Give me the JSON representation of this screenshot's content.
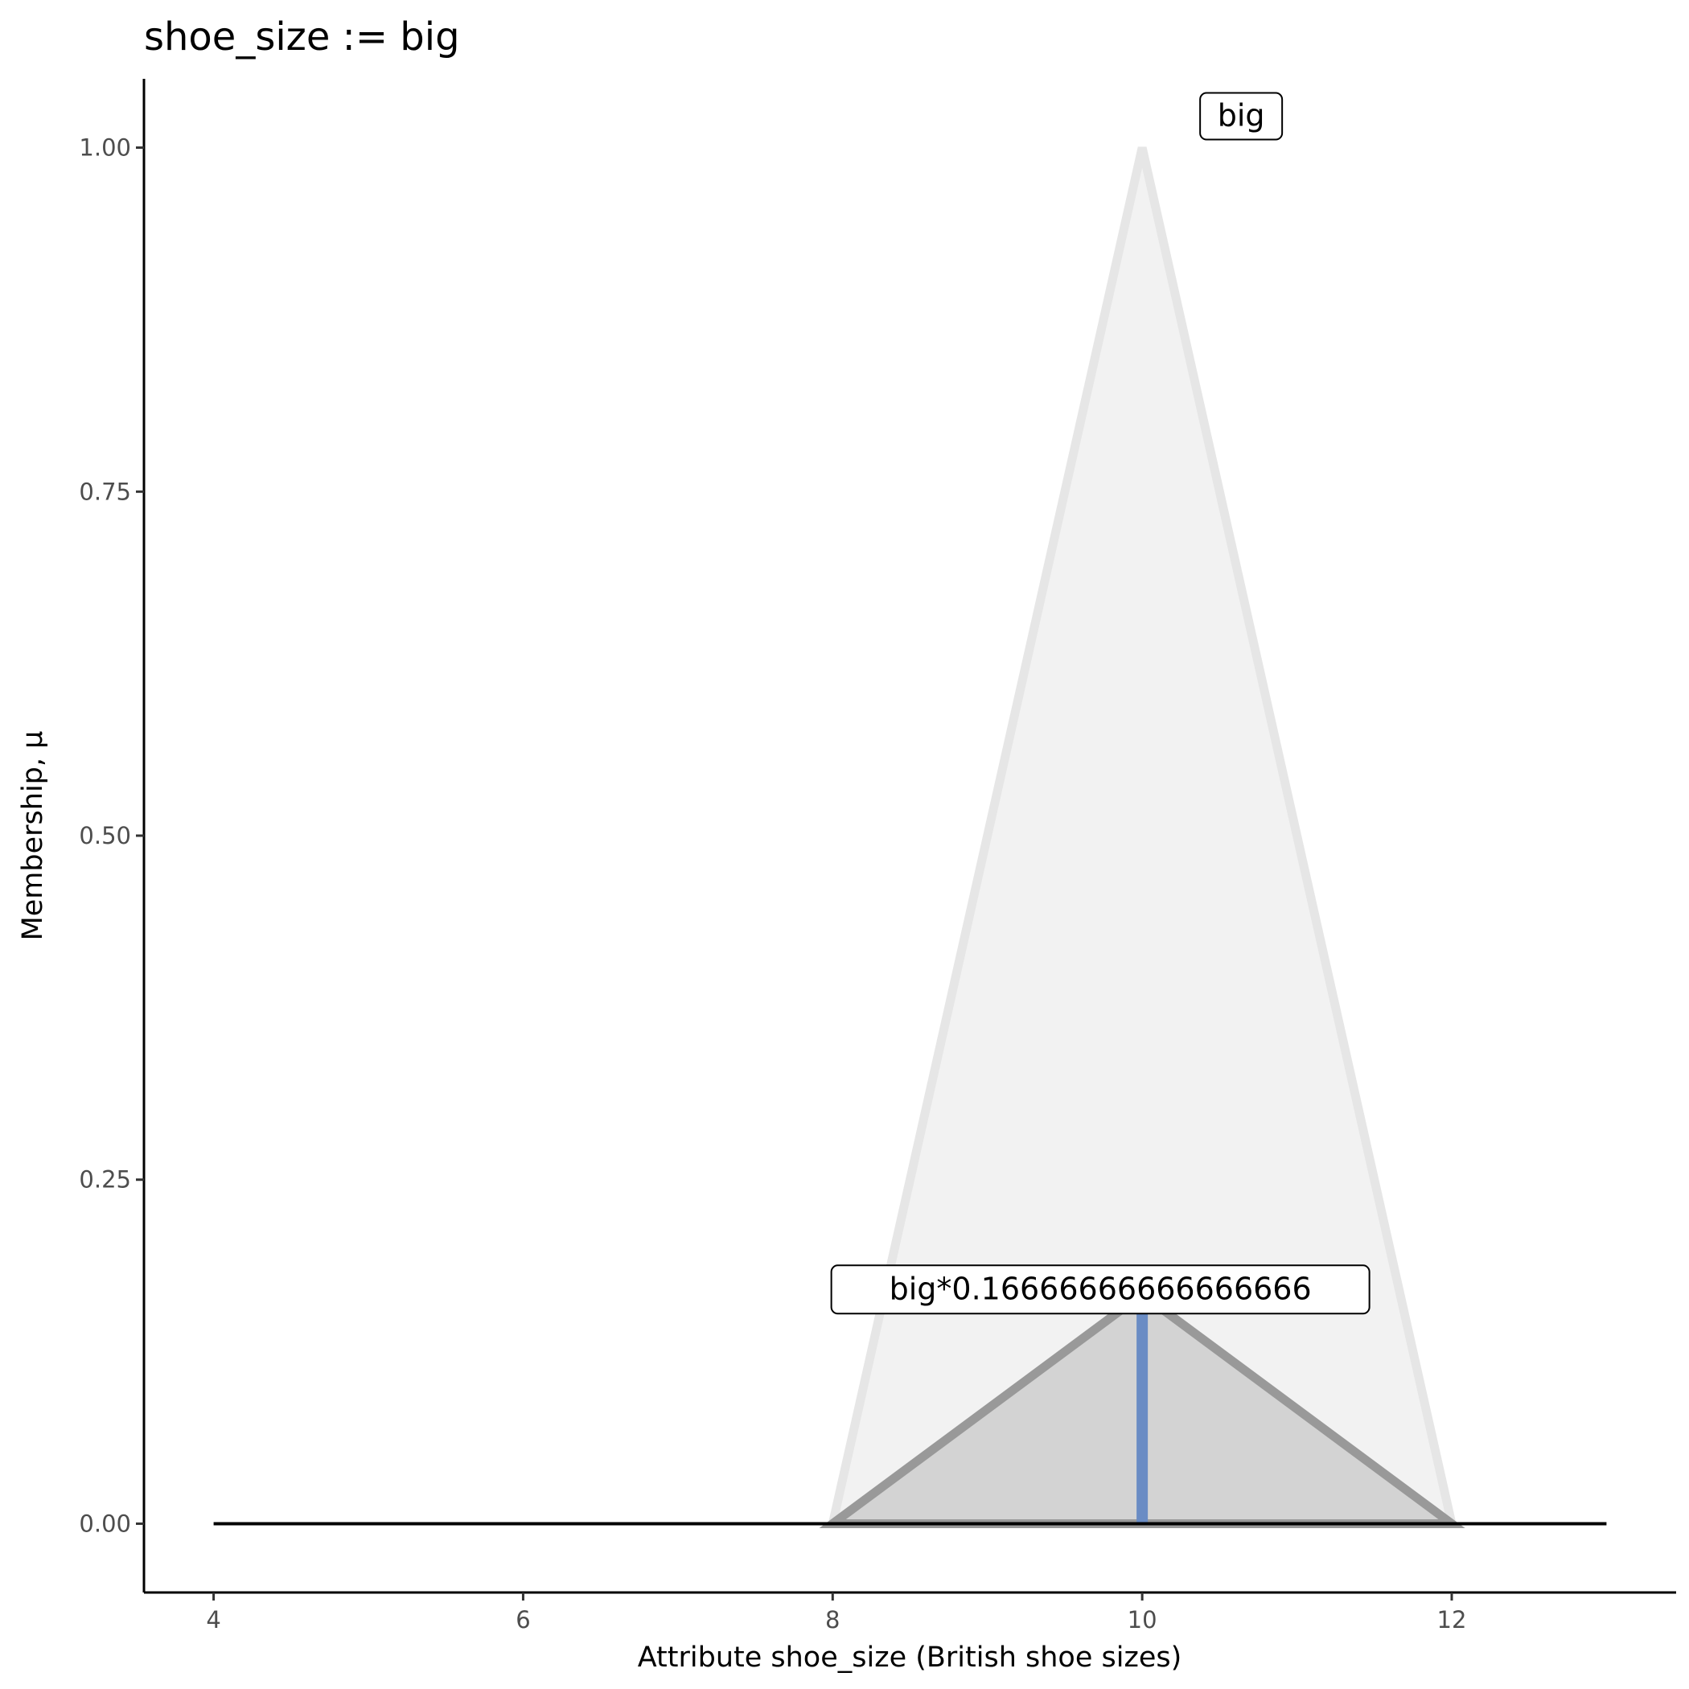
{
  "chart_data": {
    "type": "area",
    "title": "shoe_size := big",
    "xlabel": "Attribute shoe_size (British shoe sizes)",
    "ylabel": "Membership, μ",
    "xlim": [
      3.55,
      13.45
    ],
    "ylim": [
      -0.05,
      1.05
    ],
    "x_ticks": [
      4,
      6,
      8,
      10,
      12
    ],
    "x_tick_labels": [
      "4",
      "6",
      "8",
      "10",
      "12"
    ],
    "y_ticks": [
      0,
      0.25,
      0.5,
      0.75,
      1.0
    ],
    "y_tick_labels": [
      "0.00",
      "0.25",
      "0.50",
      "0.75",
      "1.00"
    ],
    "grid": false,
    "series": [
      {
        "name": "big",
        "x": [
          8,
          10,
          12
        ],
        "y": [
          0,
          1,
          0
        ],
        "fill": "#f2f2f2",
        "stroke": "#e6e6e6"
      },
      {
        "name": "big*0.16666666666666666",
        "x": [
          8,
          10,
          12
        ],
        "y": [
          0,
          0.16666666666666666,
          0
        ],
        "fill": "#d3d3d3",
        "stroke": "#999999"
      }
    ],
    "baseline": {
      "x": [
        4,
        13
      ],
      "y": 0,
      "color": "#000000"
    },
    "value_marker": {
      "x": 10,
      "y": [
        0,
        0.16
      ],
      "color": "#6a8cc4"
    },
    "annotations": [
      {
        "text": "big",
        "x": 10,
        "y": 1.0
      },
      {
        "text": "big*0.16666666666666666",
        "x": 10,
        "y": 0.16666666666666666
      }
    ]
  }
}
